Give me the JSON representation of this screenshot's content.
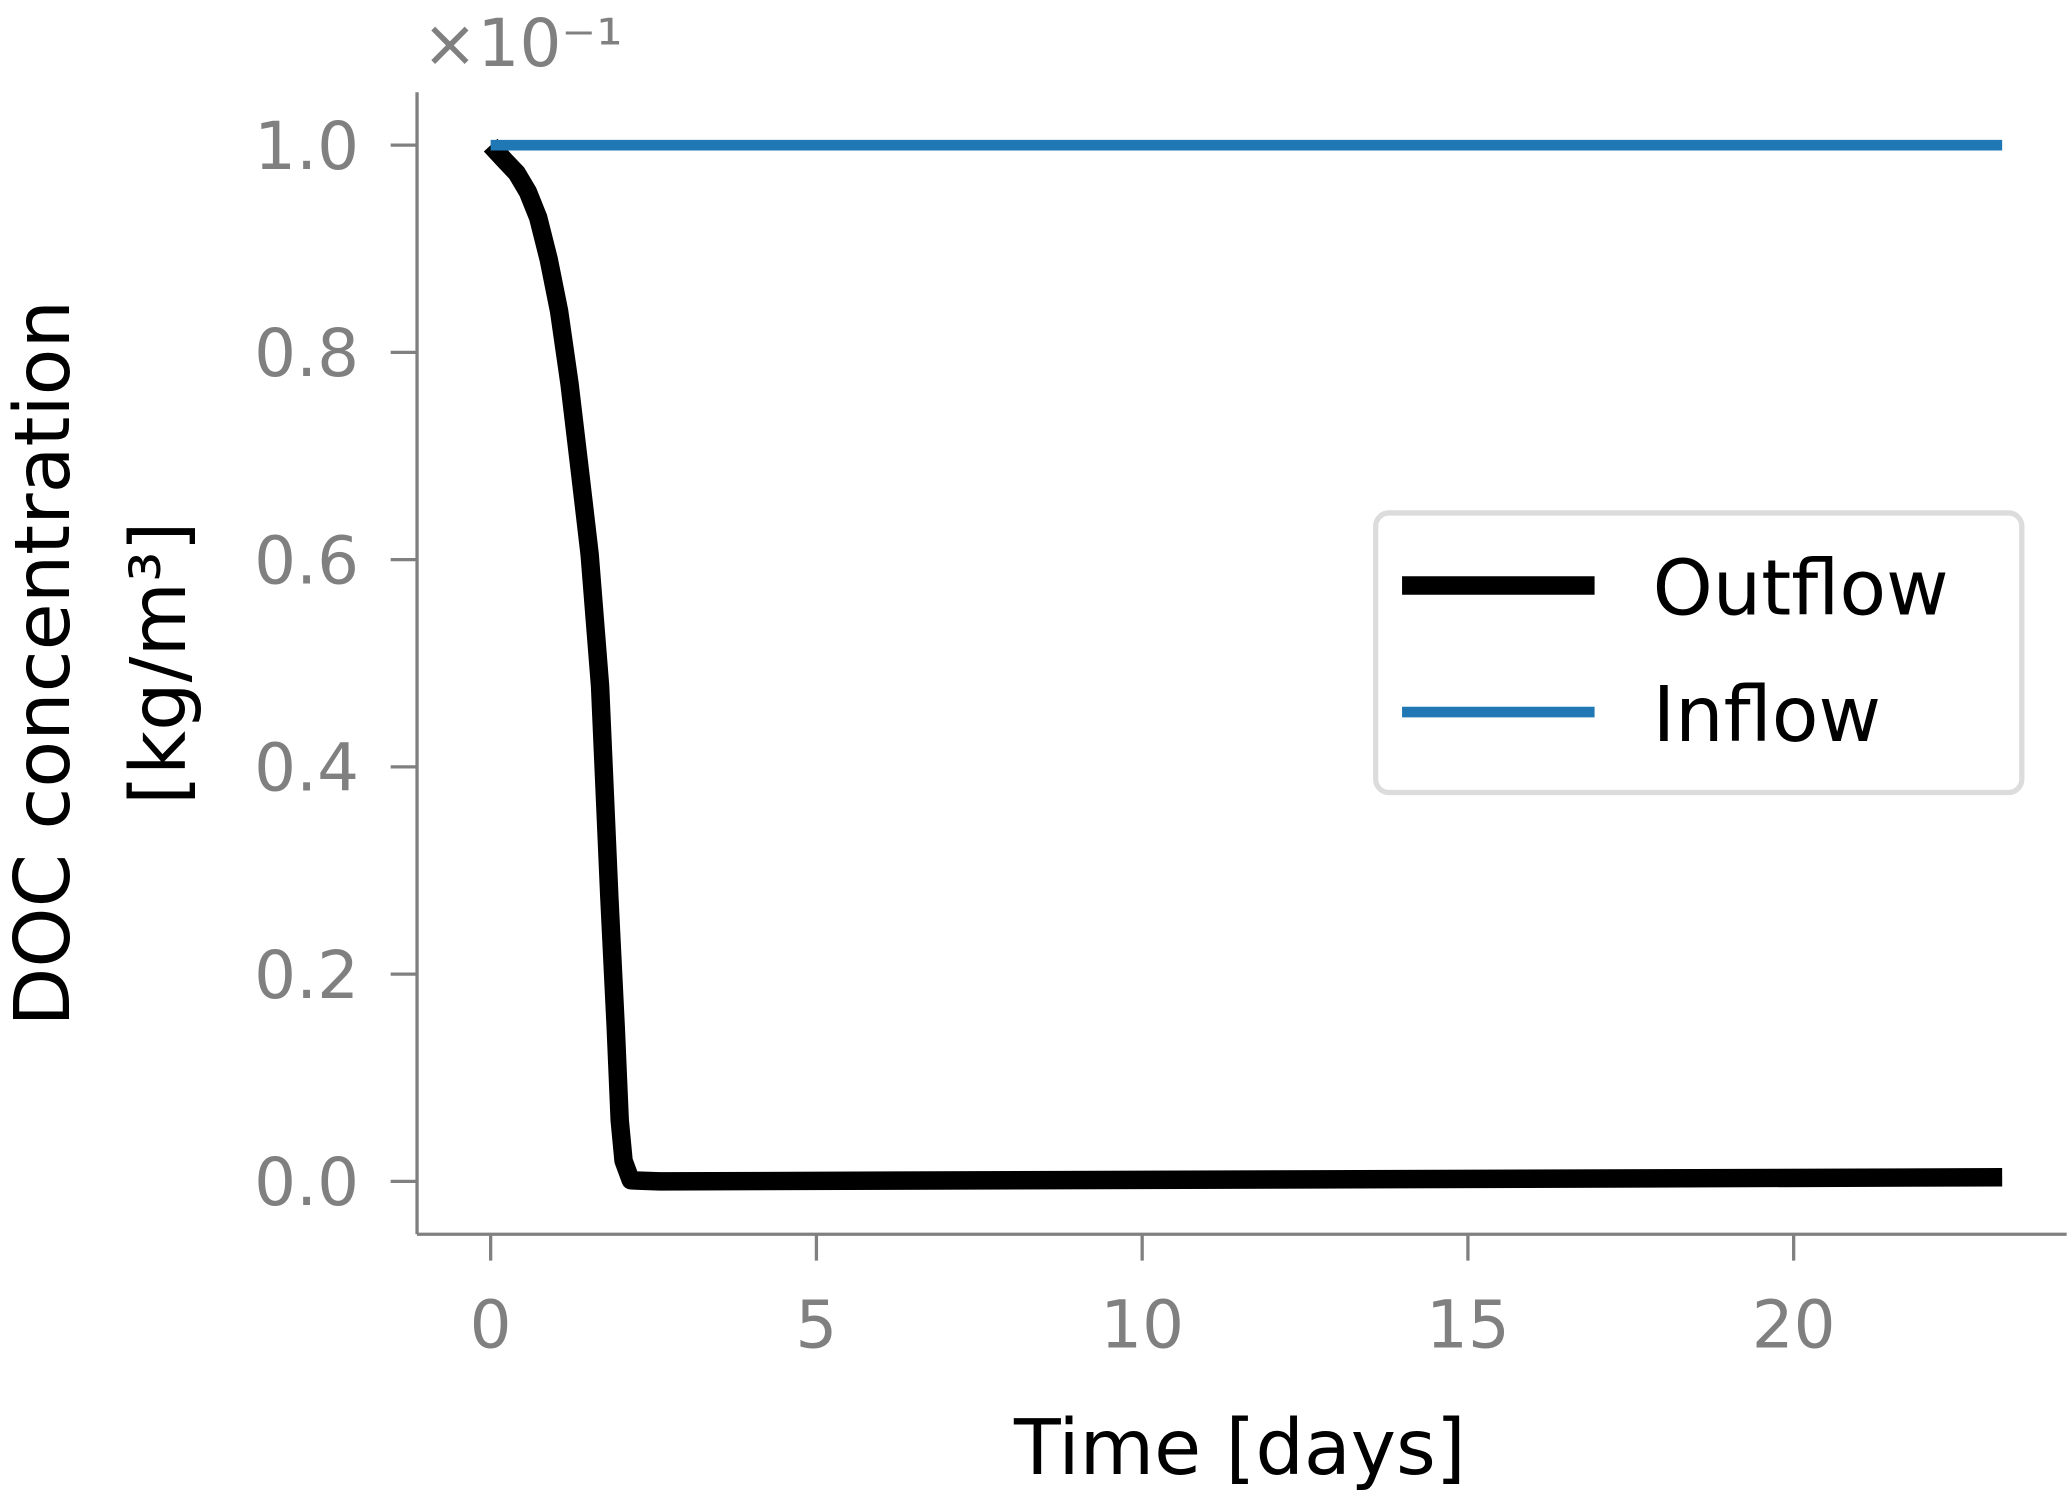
{
  "chart_data": {
    "type": "line",
    "xlabel": "Time [days]",
    "ylabel": [
      "DOC concentration",
      "[kg/m³]"
    ],
    "y_offset_label": "×10⁻¹",
    "xlim": [
      -1.13,
      24.19
    ],
    "ylim": [
      -0.051,
      1.051
    ],
    "xticks": [
      0,
      5,
      10,
      15,
      20
    ],
    "yticks": [
      {
        "value": 0,
        "label": "0.0"
      },
      {
        "value": 0.2,
        "label": "0.2"
      },
      {
        "value": 0.4,
        "label": "0.4"
      },
      {
        "value": 0.6,
        "label": "0.6"
      },
      {
        "value": 0.8,
        "label": "0.8"
      },
      {
        "value": 1,
        "label": "1.0"
      }
    ],
    "grid": false,
    "legend": "center right",
    "series": [
      {
        "name": "Outflow",
        "color": "#000000",
        "x": [
          0,
          0.22,
          0.4,
          0.57,
          0.73,
          0.89,
          1.05,
          1.21,
          1.38,
          1.52,
          1.68,
          1.82,
          1.92,
          1.98,
          2.04,
          2.15,
          2.6,
          12.7,
          23.2
        ],
        "values": [
          1.0,
          0.985,
          0.973,
          0.955,
          0.93,
          0.89,
          0.84,
          0.77,
          0.68,
          0.605,
          0.478,
          0.275,
          0.148,
          0.059,
          0.02,
          0.001,
          0,
          0.002,
          0.004
        ]
      },
      {
        "name": "Inflow",
        "color": "#1f77b4",
        "x": [
          0,
          23.2
        ],
        "values": [
          1.0,
          1.0
        ]
      }
    ]
  }
}
